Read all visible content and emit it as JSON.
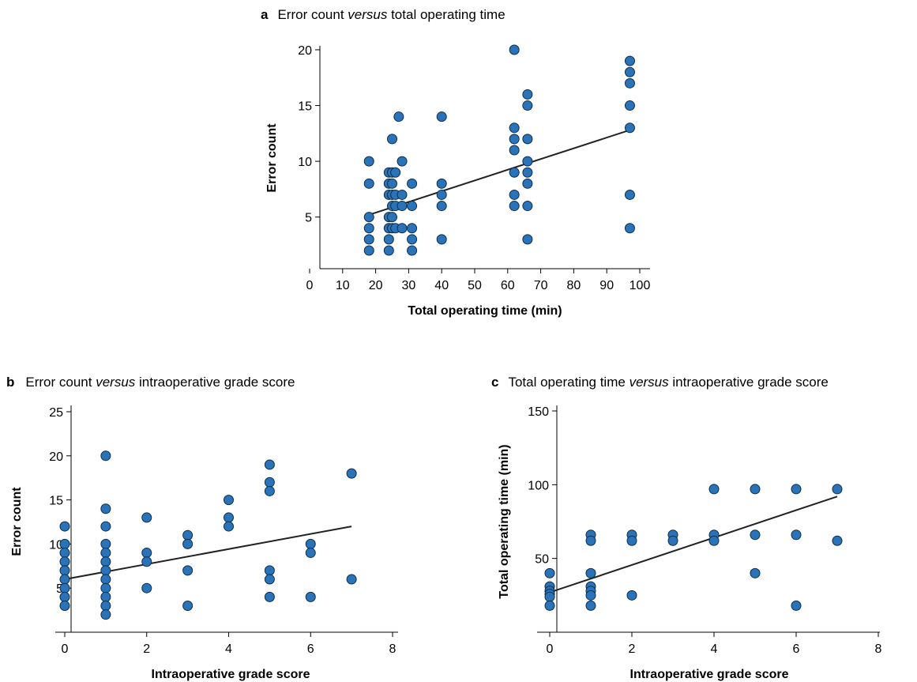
{
  "chart_data": [
    {
      "type": "scatter",
      "panel_letter": "a",
      "title_pre": "Error count ",
      "title_italic": "versus",
      "title_post": " total operating time",
      "xlabel": "Total operating time (min)",
      "ylabel": "Error count",
      "xlim": [
        0,
        100
      ],
      "ylim": [
        1,
        21
      ],
      "xticks": [
        0,
        10,
        20,
        30,
        40,
        50,
        60,
        70,
        80,
        90,
        100
      ],
      "yticks": [
        5,
        10,
        15,
        20
      ],
      "grid": false,
      "marker_color": "#2a73b8",
      "trend_line": {
        "x": [
          18,
          97
        ],
        "y": [
          5.2,
          12.8
        ]
      },
      "points": [
        [
          18,
          10
        ],
        [
          18,
          8
        ],
        [
          18,
          5
        ],
        [
          18,
          4
        ],
        [
          18,
          3
        ],
        [
          18,
          2
        ],
        [
          24,
          9
        ],
        [
          24,
          8
        ],
        [
          24,
          7
        ],
        [
          24,
          5
        ],
        [
          24,
          4
        ],
        [
          24,
          3
        ],
        [
          24,
          2
        ],
        [
          25,
          12
        ],
        [
          25,
          9
        ],
        [
          25,
          8
        ],
        [
          25,
          7
        ],
        [
          25,
          6
        ],
        [
          25,
          5
        ],
        [
          25,
          4
        ],
        [
          26,
          9
        ],
        [
          26,
          7
        ],
        [
          26,
          6
        ],
        [
          26,
          4
        ],
        [
          27,
          14
        ],
        [
          28,
          10
        ],
        [
          28,
          7
        ],
        [
          28,
          6
        ],
        [
          28,
          4
        ],
        [
          31,
          8
        ],
        [
          31,
          6
        ],
        [
          31,
          4
        ],
        [
          31,
          3
        ],
        [
          31,
          2
        ],
        [
          40,
          14
        ],
        [
          40,
          8
        ],
        [
          40,
          7
        ],
        [
          40,
          6
        ],
        [
          40,
          3
        ],
        [
          62,
          20
        ],
        [
          62,
          13
        ],
        [
          62,
          12
        ],
        [
          62,
          11
        ],
        [
          62,
          9
        ],
        [
          62,
          7
        ],
        [
          62,
          6
        ],
        [
          66,
          16
        ],
        [
          66,
          15
        ],
        [
          66,
          12
        ],
        [
          66,
          10
        ],
        [
          66,
          9
        ],
        [
          66,
          8
        ],
        [
          66,
          6
        ],
        [
          66,
          3
        ],
        [
          97,
          19
        ],
        [
          97,
          18
        ],
        [
          97,
          17
        ],
        [
          97,
          15
        ],
        [
          97,
          13
        ],
        [
          97,
          7
        ],
        [
          97,
          4
        ]
      ]
    },
    {
      "type": "scatter",
      "panel_letter": "b",
      "title_pre": "Error count ",
      "title_italic": "versus",
      "title_post": " intraoperative grade score",
      "xlabel": "Intraoperative grade score",
      "ylabel": "Error count",
      "xlim": [
        0,
        8
      ],
      "ylim": [
        0,
        25
      ],
      "xticks": [
        0,
        2,
        4,
        6,
        8
      ],
      "yticks": [
        5,
        10,
        15,
        20,
        25
      ],
      "grid": false,
      "marker_color": "#2a73b8",
      "trend_line": {
        "x": [
          0,
          7
        ],
        "y": [
          6,
          12
        ]
      },
      "points": [
        [
          0,
          12
        ],
        [
          0,
          10
        ],
        [
          0,
          9
        ],
        [
          0,
          8
        ],
        [
          0,
          7
        ],
        [
          0,
          6
        ],
        [
          0,
          5
        ],
        [
          0,
          4
        ],
        [
          0,
          3
        ],
        [
          1,
          20
        ],
        [
          1,
          14
        ],
        [
          1,
          12
        ],
        [
          1,
          10
        ],
        [
          1,
          9
        ],
        [
          1,
          8
        ],
        [
          1,
          7
        ],
        [
          1,
          6
        ],
        [
          1,
          5
        ],
        [
          1,
          4
        ],
        [
          1,
          3
        ],
        [
          1,
          2
        ],
        [
          2,
          13
        ],
        [
          2,
          9
        ],
        [
          2,
          8
        ],
        [
          2,
          5
        ],
        [
          3,
          11
        ],
        [
          3,
          10
        ],
        [
          3,
          7
        ],
        [
          3,
          3
        ],
        [
          4,
          15
        ],
        [
          4,
          13
        ],
        [
          4,
          12
        ],
        [
          5,
          19
        ],
        [
          5,
          17
        ],
        [
          5,
          16
        ],
        [
          5,
          7
        ],
        [
          5,
          6
        ],
        [
          5,
          4
        ],
        [
          6,
          10
        ],
        [
          6,
          9
        ],
        [
          6,
          4
        ],
        [
          7,
          18
        ],
        [
          7,
          6
        ]
      ]
    },
    {
      "type": "scatter",
      "panel_letter": "c",
      "title_pre": "Total operating time ",
      "title_italic": "versus",
      "title_post": " intraoperative grade score",
      "xlabel": "Intraoperative grade score",
      "ylabel": "Total operating time (min)",
      "xlim": [
        0,
        8
      ],
      "ylim": [
        0,
        150
      ],
      "xticks": [
        0,
        2,
        4,
        6,
        8
      ],
      "yticks": [
        50,
        100,
        150
      ],
      "grid": false,
      "marker_color": "#2a73b8",
      "trend_line": {
        "x": [
          0,
          7
        ],
        "y": [
          27,
          92
        ]
      },
      "points": [
        [
          0,
          40
        ],
        [
          0,
          31
        ],
        [
          0,
          28
        ],
        [
          0,
          26
        ],
        [
          0,
          24
        ],
        [
          0,
          18
        ],
        [
          1,
          66
        ],
        [
          1,
          62
        ],
        [
          1,
          40
        ],
        [
          1,
          31
        ],
        [
          1,
          28
        ],
        [
          1,
          25
        ],
        [
          1,
          18
        ],
        [
          2,
          66
        ],
        [
          2,
          62
        ],
        [
          2,
          25
        ],
        [
          3,
          66
        ],
        [
          3,
          62
        ],
        [
          4,
          97
        ],
        [
          4,
          66
        ],
        [
          4,
          62
        ],
        [
          5,
          97
        ],
        [
          5,
          66
        ],
        [
          5,
          40
        ],
        [
          6,
          97
        ],
        [
          6,
          66
        ],
        [
          6,
          18
        ],
        [
          7,
          97
        ],
        [
          7,
          62
        ]
      ]
    }
  ]
}
